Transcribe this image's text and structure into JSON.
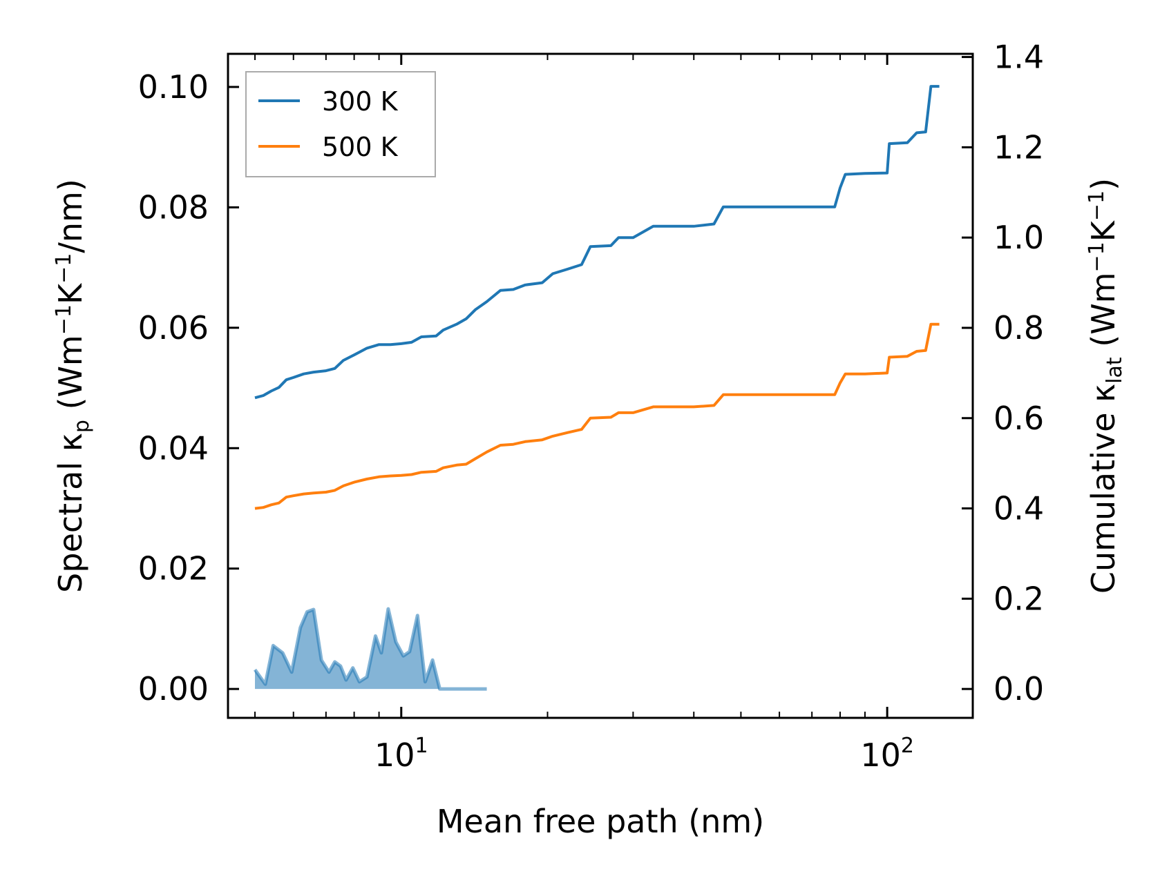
{
  "chart_data": {
    "type": "line",
    "title": "",
    "xlabel": "Mean free path (nm)",
    "ylabel_left": {
      "main": "Spectral κ",
      "sub": "p",
      "units_open": " (Wm",
      "sup1": "−1",
      "mid": "K",
      "sup2": "−1",
      "units_close": "/nm)"
    },
    "ylabel_right": {
      "main": "Cumulative κ",
      "sub": "lat",
      "units_open": " (Wm",
      "sup1": "−1",
      "mid": "K",
      "sup2": "−1",
      "units_close": ")"
    },
    "xscale": "log",
    "xlim": [
      4.4,
      150
    ],
    "ylim_left": [
      -0.0048,
      0.1055
    ],
    "ylim_right": [
      -0.064,
      1.407
    ],
    "x_ticks": [
      {
        "value": 10,
        "base": "10",
        "exp": "1"
      },
      {
        "value": 100,
        "base": "10",
        "exp": "2"
      }
    ],
    "y_left_ticks": [
      {
        "value": 0.0,
        "label": "0.00"
      },
      {
        "value": 0.02,
        "label": "0.02"
      },
      {
        "value": 0.04,
        "label": "0.04"
      },
      {
        "value": 0.06,
        "label": "0.06"
      },
      {
        "value": 0.08,
        "label": "0.08"
      },
      {
        "value": 0.1,
        "label": "0.10"
      }
    ],
    "y_right_ticks": [
      {
        "value": 0.0,
        "label": "0.0"
      },
      {
        "value": 0.2,
        "label": "0.2"
      },
      {
        "value": 0.4,
        "label": "0.4"
      },
      {
        "value": 0.6,
        "label": "0.6"
      },
      {
        "value": 0.8,
        "label": "0.8"
      },
      {
        "value": 1.0,
        "label": "1.0"
      },
      {
        "value": 1.2,
        "label": "1.2"
      },
      {
        "value": 1.4,
        "label": "1.4"
      }
    ],
    "legend": {
      "position": "upper-left",
      "entries": [
        "300 K",
        "500 K"
      ]
    },
    "series": [
      {
        "name": "300 K",
        "color": "#1f77b4",
        "cumulative": [
          [
            5.0,
            0.645
          ],
          [
            5.2,
            0.65
          ],
          [
            5.4,
            0.66
          ],
          [
            5.6,
            0.668
          ],
          [
            5.8,
            0.685
          ],
          [
            6.0,
            0.69
          ],
          [
            6.3,
            0.698
          ],
          [
            6.6,
            0.702
          ],
          [
            7.0,
            0.705
          ],
          [
            7.3,
            0.71
          ],
          [
            7.6,
            0.728
          ],
          [
            8.0,
            0.74
          ],
          [
            8.5,
            0.755
          ],
          [
            9.0,
            0.763
          ],
          [
            9.5,
            0.763
          ],
          [
            10.0,
            0.765
          ],
          [
            10.5,
            0.768
          ],
          [
            11.0,
            0.78
          ],
          [
            11.8,
            0.782
          ],
          [
            12.2,
            0.795
          ],
          [
            13.0,
            0.808
          ],
          [
            13.6,
            0.82
          ],
          [
            14.2,
            0.84
          ],
          [
            15.0,
            0.858
          ],
          [
            16.0,
            0.883
          ],
          [
            17.0,
            0.885
          ],
          [
            18.0,
            0.895
          ],
          [
            19.5,
            0.9
          ],
          [
            20.5,
            0.92
          ],
          [
            22.0,
            0.93
          ],
          [
            23.5,
            0.94
          ],
          [
            24.5,
            0.98
          ],
          [
            27.0,
            0.982
          ],
          [
            28.0,
            1.0
          ],
          [
            30.0,
            1.0
          ],
          [
            33.0,
            1.025
          ],
          [
            40.0,
            1.025
          ],
          [
            44.0,
            1.03
          ],
          [
            46.0,
            1.068
          ],
          [
            60.0,
            1.068
          ],
          [
            78.0,
            1.068
          ],
          [
            80.0,
            1.11
          ],
          [
            82.0,
            1.14
          ],
          [
            90.0,
            1.142
          ],
          [
            100.0,
            1.143
          ],
          [
            101.0,
            1.208
          ],
          [
            110.0,
            1.21
          ],
          [
            115.0,
            1.232
          ],
          [
            120.0,
            1.234
          ],
          [
            123.0,
            1.335
          ],
          [
            128.0,
            1.335
          ]
        ],
        "spectral": [
          [
            5.0,
            0.0032
          ],
          [
            5.25,
            0.0008
          ],
          [
            5.45,
            0.0072
          ],
          [
            5.7,
            0.006
          ],
          [
            5.95,
            0.0028
          ],
          [
            6.2,
            0.0102
          ],
          [
            6.4,
            0.0128
          ],
          [
            6.6,
            0.0132
          ],
          [
            6.85,
            0.0048
          ],
          [
            7.1,
            0.0028
          ],
          [
            7.3,
            0.0045
          ],
          [
            7.5,
            0.0038
          ],
          [
            7.7,
            0.0015
          ],
          [
            7.95,
            0.0035
          ],
          [
            8.2,
            0.0012
          ],
          [
            8.5,
            0.002
          ],
          [
            8.85,
            0.0088
          ],
          [
            9.1,
            0.006
          ],
          [
            9.4,
            0.0133
          ],
          [
            9.75,
            0.0078
          ],
          [
            10.1,
            0.0055
          ],
          [
            10.4,
            0.0062
          ],
          [
            10.8,
            0.0122
          ],
          [
            11.2,
            0.0012
          ],
          [
            11.6,
            0.0048
          ],
          [
            12.0,
            0.0
          ],
          [
            12.4,
            0.0
          ],
          [
            12.9,
            0.0
          ],
          [
            13.4,
            0.0
          ],
          [
            13.9,
            0.0
          ],
          [
            14.4,
            0.0
          ],
          [
            15.0,
            0.0
          ]
        ]
      },
      {
        "name": "500 K",
        "color": "#ff7f0e",
        "cumulative": [
          [
            5.0,
            0.4
          ],
          [
            5.2,
            0.402
          ],
          [
            5.4,
            0.408
          ],
          [
            5.6,
            0.412
          ],
          [
            5.8,
            0.425
          ],
          [
            6.0,
            0.428
          ],
          [
            6.3,
            0.432
          ],
          [
            6.6,
            0.434
          ],
          [
            7.0,
            0.436
          ],
          [
            7.3,
            0.44
          ],
          [
            7.6,
            0.45
          ],
          [
            8.0,
            0.458
          ],
          [
            8.5,
            0.465
          ],
          [
            9.0,
            0.47
          ],
          [
            9.5,
            0.472
          ],
          [
            10.0,
            0.473
          ],
          [
            10.5,
            0.475
          ],
          [
            11.0,
            0.48
          ],
          [
            11.8,
            0.482
          ],
          [
            12.2,
            0.49
          ],
          [
            13.0,
            0.496
          ],
          [
            13.6,
            0.498
          ],
          [
            14.2,
            0.51
          ],
          [
            15.0,
            0.525
          ],
          [
            16.0,
            0.54
          ],
          [
            17.0,
            0.542
          ],
          [
            18.0,
            0.548
          ],
          [
            19.5,
            0.552
          ],
          [
            20.5,
            0.56
          ],
          [
            22.0,
            0.568
          ],
          [
            23.5,
            0.575
          ],
          [
            24.5,
            0.6
          ],
          [
            27.0,
            0.602
          ],
          [
            28.0,
            0.612
          ],
          [
            30.0,
            0.612
          ],
          [
            33.0,
            0.625
          ],
          [
            40.0,
            0.625
          ],
          [
            44.0,
            0.628
          ],
          [
            46.0,
            0.652
          ],
          [
            60.0,
            0.652
          ],
          [
            78.0,
            0.652
          ],
          [
            80.0,
            0.678
          ],
          [
            82.0,
            0.698
          ],
          [
            90.0,
            0.698
          ],
          [
            100.0,
            0.7
          ],
          [
            101.0,
            0.735
          ],
          [
            110.0,
            0.737
          ],
          [
            115.0,
            0.748
          ],
          [
            120.0,
            0.75
          ],
          [
            123.0,
            0.808
          ],
          [
            128.0,
            0.808
          ]
        ],
        "spectral": []
      }
    ]
  }
}
